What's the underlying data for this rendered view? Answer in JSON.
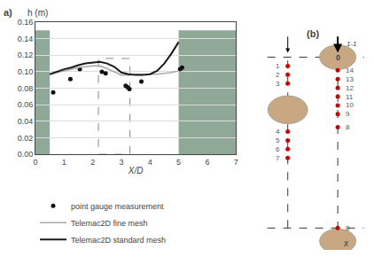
{
  "chart_data": [
    {
      "type": "line",
      "annotations": [
        "a)"
      ],
      "x_label": "X/D",
      "y_label": "h (m)",
      "xlim": [
        0,
        7
      ],
      "ylim": [
        0,
        0.16
      ],
      "xticks": [
        0,
        1,
        2,
        3,
        4,
        5,
        6,
        7
      ],
      "yticks": [
        {
          "value": 0,
          "label": "0.00"
        },
        0.02,
        0.04,
        0.06,
        0.08,
        {
          "value": 0.1,
          "label": "0.10"
        },
        0.12,
        0.14,
        0.16
      ],
      "grid": "y",
      "grid_color": "#dddddd",
      "legend": "lower left",
      "walls": [
        {
          "x": [
            0.0,
            0.5
          ],
          "y": [
            0,
            0.15
          ]
        },
        {
          "x": [
            5.0,
            7.0
          ],
          "y": [
            0,
            0.15
          ]
        }
      ],
      "wall_color": "#8fa898",
      "region": {
        "x": [
          2.2,
          3.3
        ],
        "y": [
          0,
          0.116
        ],
        "color": "#888888",
        "line_style": "dashed"
      },
      "series": [
        {
          "name": "point gauge measurement",
          "type": "scatter",
          "marker": "circle",
          "color": "#111111",
          "x": [
            0.62,
            1.22,
            1.55,
            2.32,
            2.45,
            3.15,
            3.22,
            3.28,
            3.7,
            5.05,
            5.12
          ],
          "values": [
            0.075,
            0.091,
            0.103,
            0.1,
            0.098,
            0.083,
            0.081,
            0.079,
            0.088,
            0.103,
            0.105
          ]
        },
        {
          "name": "Telemac2D fine mesh",
          "type": "line",
          "line_style": "solid",
          "color": "#aaaaaa",
          "x": [
            0.5,
            0.75,
            1.0,
            1.25,
            1.5,
            1.75,
            2.0,
            2.25,
            2.5,
            2.75,
            3.0,
            3.25,
            3.5,
            3.75,
            4.0,
            4.25,
            4.5,
            4.75,
            5.0
          ],
          "values": [
            0.097,
            0.099,
            0.101,
            0.103,
            0.105,
            0.106,
            0.107,
            0.107,
            0.104,
            0.1,
            0.096,
            0.096,
            0.097,
            0.097,
            0.097,
            0.097,
            0.098,
            0.099,
            0.101
          ]
        },
        {
          "name": "Telemac2D standard mesh",
          "type": "line",
          "line_style": "solid",
          "color": "#1a1a1a",
          "x": [
            0.5,
            0.75,
            1.0,
            1.25,
            1.5,
            1.75,
            2.0,
            2.25,
            2.5,
            2.75,
            3.0,
            3.25,
            3.5,
            3.75,
            4.0,
            4.25,
            4.5,
            4.75,
            5.0
          ],
          "values": [
            0.097,
            0.1,
            0.103,
            0.105,
            0.108,
            0.11,
            0.111,
            0.112,
            0.11,
            0.106,
            0.099,
            0.097,
            0.096,
            0.096,
            0.097,
            0.101,
            0.11,
            0.122,
            0.136
          ]
        }
      ]
    },
    {
      "type": "diagram",
      "annotations": [
        "(b)",
        "1-1",
        "0",
        "x"
      ],
      "labels": [
        "1",
        "2",
        "3",
        "4",
        "5",
        "6",
        "7",
        "14",
        "13",
        "12",
        "11",
        "10",
        "9",
        "8",
        "8"
      ],
      "color": "#cc0000",
      "label_color": "#555555",
      "line_color": "#000000",
      "line_style": "dashed",
      "cylinder_color": "#c8a882",
      "cylinder_edge_color": "#999999"
    }
  ]
}
